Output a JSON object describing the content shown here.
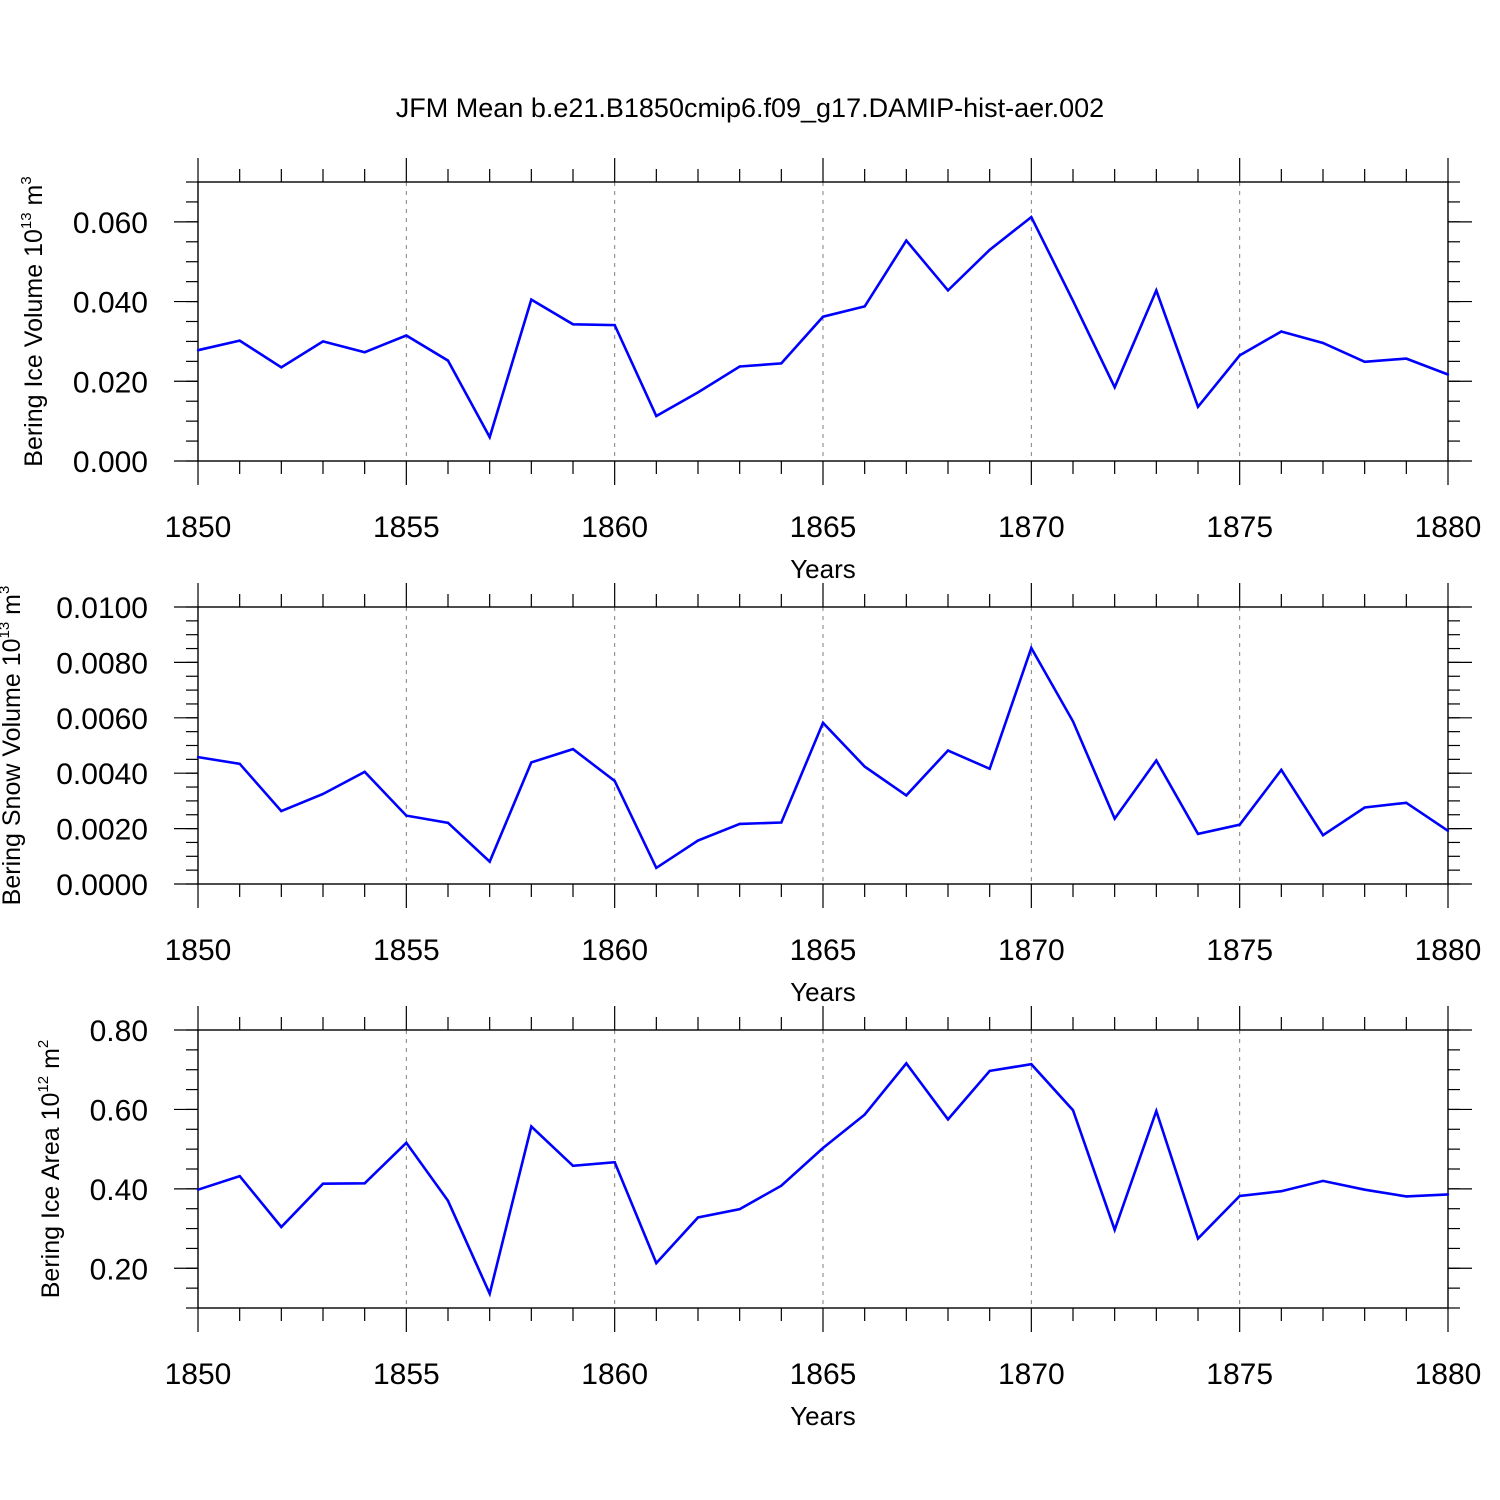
{
  "title": "JFM Mean b.e21.B1850cmip6.f09_g17.DAMIP-hist-aer.002",
  "colors": {
    "series": "#0000ff",
    "axis": "#000000",
    "grid": "#7f7f7f"
  },
  "chart_data": [
    {
      "type": "line",
      "ylabel": "Bering Ice Volume 10",
      "ylabel_exp1": "13",
      "ylabel_mid": " m",
      "ylabel_exp2": "3",
      "xlabel": "Years",
      "xlim": [
        1850,
        1880
      ],
      "ylim": [
        0.0,
        0.07
      ],
      "xticks": [
        "1850",
        "1855",
        "1860",
        "1865",
        "1870",
        "1875",
        "1880"
      ],
      "yticks": [
        {
          "v": 0.0,
          "label": "0.000"
        },
        {
          "v": 0.02,
          "label": "0.020"
        },
        {
          "v": 0.04,
          "label": "0.040"
        },
        {
          "v": 0.06,
          "label": "0.060"
        }
      ],
      "yminor_step": 0.005,
      "grid": "vertical dashed at 1855, 1860, 1865, 1870, 1875",
      "x": [
        1850,
        1851,
        1852,
        1853,
        1854,
        1855,
        1856,
        1857,
        1858,
        1859,
        1860,
        1861,
        1862,
        1863,
        1864,
        1865,
        1866,
        1867,
        1868,
        1869,
        1870,
        1871,
        1872,
        1873,
        1874,
        1875,
        1876,
        1877,
        1878,
        1879,
        1880
      ],
      "y": [
        0.0278,
        0.0302,
        0.0235,
        0.03,
        0.0273,
        0.0315,
        0.0252,
        0.006,
        0.0405,
        0.0343,
        0.0341,
        0.0113,
        0.0172,
        0.0237,
        0.0245,
        0.0362,
        0.0388,
        0.0553,
        0.0428,
        0.053,
        0.0612,
        0.0402,
        0.0185,
        0.0428,
        0.0136,
        0.0265,
        0.0325,
        0.0296,
        0.0249,
        0.0257,
        0.0217
      ]
    },
    {
      "type": "line",
      "ylabel": "Bering Snow Volume 10",
      "ylabel_exp1": "13",
      "ylabel_mid": " m",
      "ylabel_exp2": "3",
      "xlabel": "Years",
      "xlim": [
        1850,
        1880
      ],
      "ylim": [
        0.0,
        0.01
      ],
      "xticks": [
        "1850",
        "1855",
        "1860",
        "1865",
        "1870",
        "1875",
        "1880"
      ],
      "yticks": [
        {
          "v": 0.0,
          "label": "0.0000"
        },
        {
          "v": 0.002,
          "label": "0.0020"
        },
        {
          "v": 0.004,
          "label": "0.0040"
        },
        {
          "v": 0.006,
          "label": "0.0060"
        },
        {
          "v": 0.008,
          "label": "0.0080"
        },
        {
          "v": 0.01,
          "label": "0.0100"
        }
      ],
      "yminor_step": 0.0005,
      "grid": "vertical dashed at 1855, 1860, 1865, 1870, 1875",
      "x": [
        1850,
        1851,
        1852,
        1853,
        1854,
        1855,
        1856,
        1857,
        1858,
        1859,
        1860,
        1861,
        1862,
        1863,
        1864,
        1865,
        1866,
        1867,
        1868,
        1869,
        1870,
        1871,
        1872,
        1873,
        1874,
        1875,
        1876,
        1877,
        1878,
        1879,
        1880
      ],
      "y": [
        0.00458,
        0.00434,
        0.00263,
        0.00325,
        0.00405,
        0.00247,
        0.00221,
        0.00081,
        0.00439,
        0.00487,
        0.00372,
        0.00058,
        0.00157,
        0.00217,
        0.00222,
        0.00582,
        0.00424,
        0.0032,
        0.00482,
        0.00416,
        0.00852,
        0.00587,
        0.00236,
        0.00446,
        0.00181,
        0.00214,
        0.00412,
        0.00176,
        0.00276,
        0.00293,
        0.00192
      ]
    },
    {
      "type": "line",
      "ylabel": "Bering Ice Area 10",
      "ylabel_exp1": "12",
      "ylabel_mid": " m",
      "ylabel_exp2": "2",
      "xlabel": "Years",
      "xlim": [
        1850,
        1880
      ],
      "ylim": [
        0.1,
        0.8
      ],
      "xticks": [
        "1850",
        "1855",
        "1860",
        "1865",
        "1870",
        "1875",
        "1880"
      ],
      "yticks": [
        {
          "v": 0.2,
          "label": "0.20"
        },
        {
          "v": 0.4,
          "label": "0.40"
        },
        {
          "v": 0.6,
          "label": "0.60"
        },
        {
          "v": 0.8,
          "label": "0.80"
        }
      ],
      "yminor_step": 0.05,
      "grid": "vertical dashed at 1855, 1860, 1865, 1870, 1875",
      "x": [
        1850,
        1851,
        1852,
        1853,
        1854,
        1855,
        1856,
        1857,
        1858,
        1859,
        1860,
        1861,
        1862,
        1863,
        1864,
        1865,
        1866,
        1867,
        1868,
        1869,
        1870,
        1871,
        1872,
        1873,
        1874,
        1875,
        1876,
        1877,
        1878,
        1879,
        1880
      ],
      "y": [
        0.398,
        0.432,
        0.304,
        0.413,
        0.414,
        0.516,
        0.37,
        0.136,
        0.557,
        0.458,
        0.467,
        0.213,
        0.328,
        0.349,
        0.408,
        0.503,
        0.587,
        0.716,
        0.575,
        0.697,
        0.714,
        0.598,
        0.297,
        0.596,
        0.275,
        0.382,
        0.394,
        0.42,
        0.398,
        0.381,
        0.386
      ]
    }
  ]
}
